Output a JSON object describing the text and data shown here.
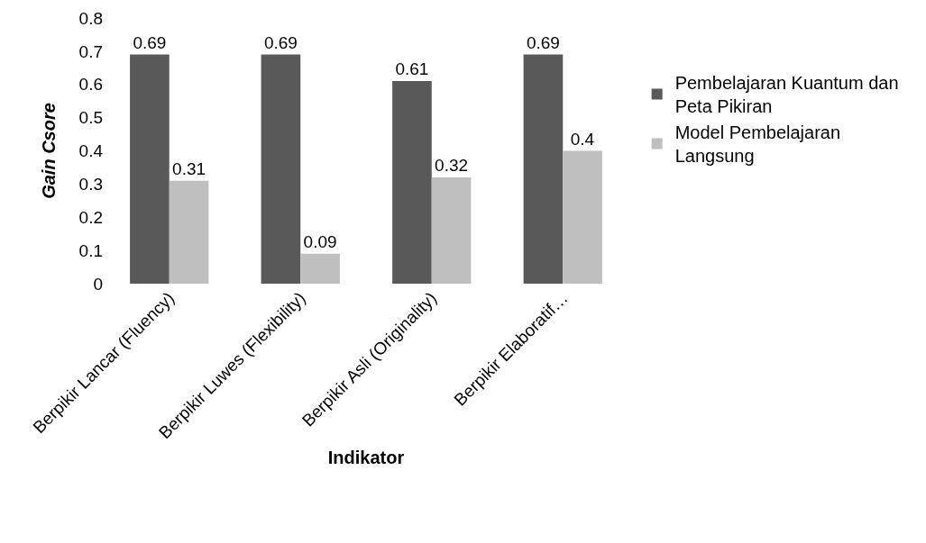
{
  "chart_data": {
    "type": "bar",
    "xlabel": "Indikator",
    "ylabel": "Gain Csore",
    "categories": [
      "Berpikir Lancar (Fluency)",
      "Berpikir Luwes (Flexibility)",
      "Berpikir Asli (Originality)",
      "Berpikir Elaboratif…"
    ],
    "series": [
      {
        "name": "Pembelajaran Kuantum dan Peta Pikiran",
        "color": "#595959",
        "values": [
          0.69,
          0.69,
          0.61,
          0.69
        ]
      },
      {
        "name": "Model Pembelajaran Langsung",
        "color": "#bfbfbf",
        "values": [
          0.31,
          0.09,
          0.32,
          0.4
        ]
      }
    ],
    "ylim": [
      0,
      0.8
    ],
    "yticks": [
      0,
      0.1,
      0.2,
      0.3,
      0.4,
      0.5,
      0.6,
      0.7,
      0.8
    ],
    "data_labels": true,
    "grid": false,
    "legend": "right"
  }
}
